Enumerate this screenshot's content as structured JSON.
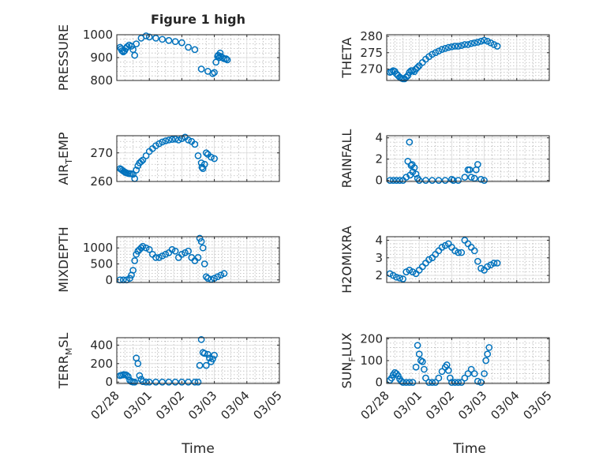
{
  "figure": {
    "title": "Figure 1 high",
    "xlabel": "Time",
    "marker_color": "#0072BD",
    "background": "#ffffff"
  },
  "chart_data": [
    {
      "type": "scatter",
      "ylabel": "PRESSURE",
      "xticks": [
        "02/28",
        "03/01",
        "03/02",
        "03/03",
        "03/04",
        "03/05"
      ],
      "xlim": [
        0,
        5
      ],
      "ylim": [
        800,
        1000
      ],
      "yticks": [
        800,
        900,
        1000
      ],
      "grid": true,
      "x": [
        0.1,
        0.13,
        0.16,
        0.2,
        0.24,
        0.28,
        0.32,
        0.38,
        0.45,
        0.5,
        0.55,
        0.6,
        0.75,
        0.9,
        1.0,
        1.2,
        1.4,
        1.6,
        1.8,
        2.0,
        2.2,
        2.4,
        2.6,
        2.8,
        2.95,
        3.0,
        3.05,
        3.1,
        3.12,
        3.15,
        3.18,
        3.2,
        3.25,
        3.3,
        3.36,
        3.4
      ],
      "y": [
        945,
        938,
        930,
        925,
        930,
        940,
        948,
        955,
        950,
        935,
        910,
        960,
        985,
        995,
        990,
        985,
        980,
        975,
        970,
        965,
        945,
        935,
        850,
        840,
        830,
        835,
        880,
        905,
        910,
        900,
        920,
        905,
        900,
        895,
        895,
        890
      ]
    },
    {
      "type": "scatter",
      "ylabel": "THETA",
      "xticks": [
        "02/28",
        "03/01",
        "03/02",
        "03/03",
        "03/04",
        "03/05"
      ],
      "xlim": [
        0,
        5
      ],
      "ylim": [
        266.5,
        280.5
      ],
      "yticks": [
        270,
        275,
        280
      ],
      "grid": true,
      "x": [
        0.1,
        0.15,
        0.2,
        0.25,
        0.3,
        0.35,
        0.4,
        0.45,
        0.5,
        0.55,
        0.6,
        0.65,
        0.7,
        0.75,
        0.8,
        0.85,
        0.9,
        0.95,
        1.0,
        1.1,
        1.2,
        1.3,
        1.4,
        1.5,
        1.6,
        1.7,
        1.8,
        1.9,
        2.0,
        2.1,
        2.2,
        2.3,
        2.4,
        2.5,
        2.6,
        2.7,
        2.8,
        2.9,
        3.0,
        3.1,
        3.2,
        3.3,
        3.4
      ],
      "y": [
        269,
        269.2,
        269.5,
        269.3,
        268.5,
        268,
        267.5,
        267.2,
        267,
        267,
        267.5,
        268,
        269,
        269.5,
        269.5,
        269.2,
        270,
        270.5,
        271,
        272,
        273,
        273.8,
        274.5,
        275,
        275.5,
        276,
        276.3,
        276.6,
        276.8,
        277,
        277,
        277.2,
        277.5,
        277.5,
        277.8,
        278,
        278.2,
        278.5,
        278.8,
        278.5,
        278,
        277.5,
        277
      ]
    },
    {
      "type": "scatter",
      "ylabel": "AIR_TEMP",
      "xticks": [
        "02/28",
        "03/01",
        "03/02",
        "03/03",
        "03/04",
        "03/05"
      ],
      "xlim": [
        0,
        5
      ],
      "ylim": [
        260,
        276
      ],
      "yticks": [
        260,
        270
      ],
      "grid": true,
      "x": [
        0.1,
        0.14,
        0.18,
        0.22,
        0.26,
        0.3,
        0.35,
        0.4,
        0.45,
        0.5,
        0.55,
        0.6,
        0.65,
        0.7,
        0.75,
        0.8,
        0.9,
        1.0,
        1.1,
        1.2,
        1.3,
        1.4,
        1.5,
        1.6,
        1.7,
        1.8,
        1.9,
        2.0,
        2.1,
        2.2,
        2.3,
        2.4,
        2.5,
        2.6,
        2.62,
        2.65,
        2.7,
        2.75,
        2.8,
        2.9,
        3.0
      ],
      "y": [
        264.5,
        264.2,
        263.8,
        263.5,
        263.2,
        263,
        262.8,
        262.7,
        262.7,
        262.5,
        261,
        264,
        265.5,
        266.5,
        267,
        267.5,
        269,
        270.5,
        271.5,
        272.5,
        273.2,
        273.8,
        274.2,
        274.5,
        274.7,
        274.8,
        274.5,
        275,
        275.5,
        274.5,
        274,
        273,
        269,
        266.5,
        265,
        264.5,
        266,
        270,
        269.5,
        268.5,
        268
      ]
    },
    {
      "type": "scatter",
      "ylabel": "RAINFALL",
      "xticks": [
        "02/28",
        "03/01",
        "03/02",
        "03/03",
        "03/04",
        "03/05"
      ],
      "xlim": [
        0,
        5
      ],
      "ylim": [
        -0.1,
        4.2
      ],
      "yticks": [
        0,
        2,
        4
      ],
      "grid": true,
      "x": [
        0.1,
        0.2,
        0.3,
        0.4,
        0.5,
        0.6,
        0.65,
        0.7,
        0.72,
        0.75,
        0.78,
        0.8,
        0.85,
        0.9,
        0.95,
        1.0,
        1.2,
        1.4,
        1.6,
        1.8,
        2.0,
        2.05,
        2.2,
        2.4,
        2.5,
        2.55,
        2.6,
        2.7,
        2.75,
        2.8,
        2.9,
        3.0
      ],
      "y": [
        0,
        0,
        0,
        0,
        0,
        0.3,
        1.8,
        3.6,
        0.5,
        1.4,
        1.5,
        0.8,
        1.2,
        0.6,
        0.2,
        0,
        0,
        0,
        0,
        0,
        0.1,
        0,
        0,
        0.3,
        1.0,
        1.0,
        0.3,
        0.2,
        1.0,
        1.5,
        0.1,
        0
      ]
    },
    {
      "type": "scatter",
      "ylabel": "MIXDEPTH",
      "xticks": [
        "02/28",
        "03/01",
        "03/02",
        "03/03",
        "03/04",
        "03/05"
      ],
      "xlim": [
        0,
        5
      ],
      "ylim": [
        -80,
        1350
      ],
      "yticks": [
        0,
        500,
        1000
      ],
      "grid": true,
      "x": [
        0.1,
        0.2,
        0.3,
        0.4,
        0.45,
        0.5,
        0.55,
        0.6,
        0.65,
        0.7,
        0.75,
        0.8,
        0.9,
        1.0,
        1.1,
        1.2,
        1.3,
        1.4,
        1.5,
        1.6,
        1.7,
        1.8,
        1.9,
        2.0,
        2.1,
        2.2,
        2.3,
        2.4,
        2.5,
        2.55,
        2.6,
        2.65,
        2.7,
        2.75,
        2.8,
        2.9,
        3.0,
        3.1,
        3.2,
        3.3
      ],
      "y": [
        0,
        0,
        0,
        50,
        150,
        300,
        600,
        800,
        900,
        950,
        1000,
        1050,
        1000,
        950,
        800,
        700,
        700,
        750,
        800,
        850,
        950,
        900,
        700,
        800,
        850,
        900,
        700,
        600,
        700,
        1300,
        1200,
        1000,
        500,
        100,
        50,
        20,
        50,
        100,
        150,
        200
      ]
    },
    {
      "type": "scatter",
      "ylabel": "H2OMIXRA",
      "xticks": [
        "02/28",
        "03/01",
        "03/02",
        "03/03",
        "03/04",
        "03/05"
      ],
      "xlim": [
        0,
        5
      ],
      "ylim": [
        1.6,
        4.2
      ],
      "yticks": [
        2,
        3,
        4
      ],
      "grid": true,
      "x": [
        0.1,
        0.2,
        0.3,
        0.4,
        0.5,
        0.6,
        0.7,
        0.8,
        0.9,
        1.0,
        1.1,
        1.2,
        1.3,
        1.4,
        1.5,
        1.6,
        1.7,
        1.8,
        1.9,
        2.0,
        2.1,
        2.2,
        2.3,
        2.4,
        2.5,
        2.6,
        2.7,
        2.8,
        2.9,
        3.0,
        3.1,
        3.2,
        3.3,
        3.4
      ],
      "y": [
        2.1,
        2.0,
        1.9,
        1.85,
        1.8,
        2.2,
        2.3,
        2.2,
        2.1,
        2.3,
        2.5,
        2.7,
        2.9,
        3.0,
        3.2,
        3.4,
        3.6,
        3.7,
        3.8,
        3.6,
        3.4,
        3.3,
        3.3,
        4.0,
        3.8,
        3.6,
        3.4,
        2.8,
        2.4,
        2.3,
        2.5,
        2.6,
        2.7,
        2.7
      ]
    },
    {
      "type": "scatter",
      "ylabel": "TERR_MSL",
      "xticks": [
        "02/28",
        "03/01",
        "03/02",
        "03/03",
        "03/04",
        "03/05"
      ],
      "xlim": [
        0,
        5
      ],
      "ylim": [
        -15,
        480
      ],
      "yticks": [
        0,
        200,
        400
      ],
      "grid": true,
      "x": [
        0.1,
        0.15,
        0.2,
        0.25,
        0.3,
        0.35,
        0.4,
        0.45,
        0.5,
        0.55,
        0.6,
        0.65,
        0.7,
        0.75,
        0.8,
        0.9,
        1.0,
        1.2,
        1.4,
        1.6,
        1.8,
        2.0,
        2.2,
        2.4,
        2.5,
        2.55,
        2.6,
        2.65,
        2.7,
        2.75,
        2.8,
        2.85,
        2.9,
        2.95,
        3.0
      ],
      "y": [
        70,
        75,
        80,
        80,
        75,
        60,
        20,
        5,
        0,
        0,
        260,
        200,
        70,
        30,
        5,
        0,
        0,
        0,
        0,
        0,
        0,
        0,
        0,
        0,
        0,
        180,
        460,
        320,
        310,
        180,
        300,
        260,
        220,
        250,
        290
      ]
    },
    {
      "type": "scatter",
      "ylabel": "SUN_FLUX",
      "xticks": [
        "02/28",
        "03/01",
        "03/02",
        "03/03",
        "03/04",
        "03/05"
      ],
      "xlim": [
        0,
        5
      ],
      "ylim": [
        -5,
        205
      ],
      "yticks": [
        0,
        100,
        200
      ],
      "grid": true,
      "x": [
        0.1,
        0.15,
        0.2,
        0.25,
        0.3,
        0.35,
        0.4,
        0.45,
        0.5,
        0.6,
        0.7,
        0.8,
        0.9,
        0.95,
        1.0,
        1.05,
        1.1,
        1.15,
        1.2,
        1.3,
        1.4,
        1.5,
        1.6,
        1.7,
        1.8,
        1.85,
        1.9,
        1.95,
        2.0,
        2.1,
        2.2,
        2.3,
        2.4,
        2.5,
        2.6,
        2.7,
        2.8,
        2.9,
        3.0,
        3.05,
        3.1,
        3.15
      ],
      "y": [
        10,
        20,
        35,
        45,
        40,
        30,
        15,
        5,
        0,
        0,
        0,
        0,
        70,
        170,
        130,
        100,
        95,
        60,
        20,
        0,
        0,
        0,
        20,
        50,
        70,
        80,
        55,
        20,
        0,
        0,
        0,
        0,
        20,
        40,
        60,
        40,
        5,
        0,
        40,
        100,
        130,
        160
      ]
    }
  ]
}
